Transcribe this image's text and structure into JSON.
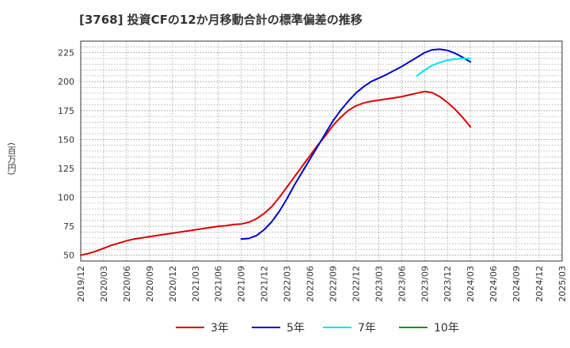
{
  "chart_data": {
    "type": "line",
    "title": "[3768]  投資CFの12か月移動合計の標準偏差の推移",
    "ylabel": "(百万円)",
    "ylim": [
      45,
      235
    ],
    "yticks": [
      50,
      75,
      100,
      125,
      150,
      175,
      200,
      225
    ],
    "xticks": [
      "2019/12",
      "2020/03",
      "2020/06",
      "2020/09",
      "2020/12",
      "2021/03",
      "2021/06",
      "2021/09",
      "2021/12",
      "2022/03",
      "2022/06",
      "2022/09",
      "2022/12",
      "2023/03",
      "2023/06",
      "2023/09",
      "2023/12",
      "2024/03",
      "2024/06",
      "2024/09",
      "2024/12",
      "2025/03"
    ],
    "grid": true,
    "legend_position": "bottom",
    "series": [
      {
        "name": "3年",
        "color": "#dd0000",
        "points": [
          [
            "2019/12",
            50
          ],
          [
            "2020/01",
            51.5
          ],
          [
            "2020/02",
            53.5
          ],
          [
            "2020/03",
            56
          ],
          [
            "2020/04",
            58.5
          ],
          [
            "2020/05",
            60.5
          ],
          [
            "2020/06",
            62.5
          ],
          [
            "2020/07",
            64
          ],
          [
            "2020/08",
            65
          ],
          [
            "2020/09",
            66
          ],
          [
            "2020/10",
            67
          ],
          [
            "2020/11",
            68
          ],
          [
            "2020/12",
            69
          ],
          [
            "2021/01",
            70
          ],
          [
            "2021/02",
            71
          ],
          [
            "2021/03",
            72
          ],
          [
            "2021/04",
            73
          ],
          [
            "2021/05",
            74
          ],
          [
            "2021/06",
            75
          ],
          [
            "2021/07",
            75.5
          ],
          [
            "2021/08",
            76.5
          ],
          [
            "2021/09",
            77
          ],
          [
            "2021/10",
            78.5
          ],
          [
            "2021/11",
            81.5
          ],
          [
            "2021/12",
            86
          ],
          [
            "2022/01",
            92
          ],
          [
            "2022/02",
            100
          ],
          [
            "2022/03",
            109
          ],
          [
            "2022/04",
            118
          ],
          [
            "2022/05",
            127
          ],
          [
            "2022/06",
            136
          ],
          [
            "2022/07",
            145
          ],
          [
            "2022/08",
            153
          ],
          [
            "2022/09",
            162
          ],
          [
            "2022/10",
            169
          ],
          [
            "2022/11",
            175
          ],
          [
            "2022/12",
            179
          ],
          [
            "2023/01",
            181.5
          ],
          [
            "2023/02",
            183
          ],
          [
            "2023/03",
            184
          ],
          [
            "2023/04",
            185
          ],
          [
            "2023/05",
            186
          ],
          [
            "2023/06",
            187
          ],
          [
            "2023/07",
            188.5
          ],
          [
            "2023/08",
            190
          ],
          [
            "2023/09",
            191.5
          ],
          [
            "2023/10",
            190.5
          ],
          [
            "2023/11",
            187
          ],
          [
            "2023/12",
            182
          ],
          [
            "2024/01",
            176
          ],
          [
            "2024/02",
            169
          ],
          [
            "2024/03",
            161
          ]
        ]
      },
      {
        "name": "5年",
        "color": "#0000cc",
        "points": [
          [
            "2021/09",
            64
          ],
          [
            "2021/10",
            64.5
          ],
          [
            "2021/11",
            67
          ],
          [
            "2021/12",
            72
          ],
          [
            "2022/01",
            79
          ],
          [
            "2022/02",
            88
          ],
          [
            "2022/03",
            99
          ],
          [
            "2022/04",
            111
          ],
          [
            "2022/05",
            122
          ],
          [
            "2022/06",
            133
          ],
          [
            "2022/07",
            144
          ],
          [
            "2022/08",
            155
          ],
          [
            "2022/09",
            166
          ],
          [
            "2022/10",
            175
          ],
          [
            "2022/11",
            183
          ],
          [
            "2022/12",
            190
          ],
          [
            "2023/01",
            195.5
          ],
          [
            "2023/02",
            200
          ],
          [
            "2023/03",
            203
          ],
          [
            "2023/04",
            206
          ],
          [
            "2023/05",
            209.5
          ],
          [
            "2023/06",
            213
          ],
          [
            "2023/07",
            217
          ],
          [
            "2023/08",
            221
          ],
          [
            "2023/09",
            225
          ],
          [
            "2023/10",
            227.5
          ],
          [
            "2023/11",
            228
          ],
          [
            "2023/12",
            227
          ],
          [
            "2024/01",
            224.5
          ],
          [
            "2024/02",
            221
          ],
          [
            "2024/03",
            217
          ]
        ]
      },
      {
        "name": "7年",
        "color": "#00e5ee",
        "points": [
          [
            "2023/08",
            205
          ],
          [
            "2023/09",
            210
          ],
          [
            "2023/10",
            214
          ],
          [
            "2023/11",
            216.5
          ],
          [
            "2023/12",
            218.5
          ],
          [
            "2024/01",
            219.5
          ],
          [
            "2024/02",
            220
          ],
          [
            "2024/03",
            220
          ]
        ]
      },
      {
        "name": "10年",
        "color": "#228822",
        "points": []
      }
    ]
  }
}
